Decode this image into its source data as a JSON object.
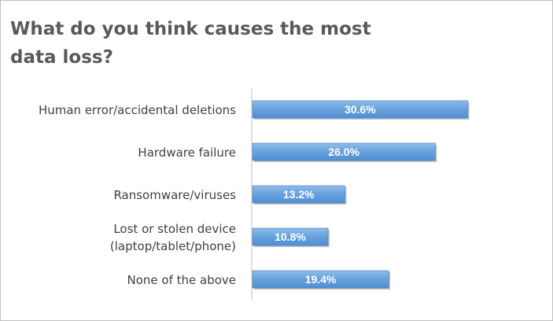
{
  "chart_data": {
    "type": "bar",
    "orientation": "horizontal",
    "title": "What do you think causes the most data loss?",
    "xlabel": "",
    "ylabel": "",
    "categories": [
      [
        "Human error/accidental deletions"
      ],
      [
        "Hardware failure"
      ],
      [
        "Ransomware/viruses"
      ],
      [
        "Lost or stolen device",
        "(laptop/tablet/phone)"
      ],
      [
        "None of the above"
      ]
    ],
    "values": [
      30.6,
      26.0,
      13.2,
      10.8,
      19.4
    ],
    "data_labels": [
      "30.6%",
      "26.0%",
      "13.2%",
      "10.8%",
      "19.4%"
    ],
    "unit": "%",
    "xlim": [
      0,
      39
    ],
    "grid": false,
    "legend": "none",
    "colors": {
      "bar_top": "#8fbcea",
      "bar_bottom": "#4e8fd4",
      "bar_edge": "#3f7fc4",
      "bar_shadow": "#8c8c8c",
      "label_text": "#404040",
      "data_label_text": "#ffffff",
      "axis_line": "#bfbfbf",
      "title_text": "#595959"
    }
  }
}
